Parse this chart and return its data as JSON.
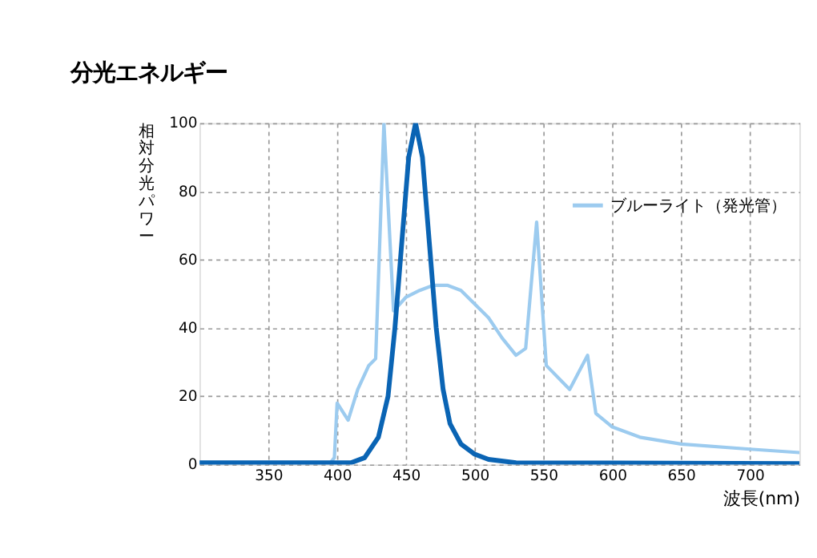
{
  "chart_data": {
    "type": "line",
    "title": "分光エネルギー",
    "xlabel": "波長(nm)",
    "ylabel": "相対分光パワー",
    "xlim": [
      300,
      736
    ],
    "xticks": [
      350,
      400,
      450,
      500,
      550,
      600,
      650,
      700
    ],
    "ylim": [
      0,
      100
    ],
    "yticks": [
      0,
      20,
      40,
      60,
      80,
      100
    ],
    "grid": true,
    "legend": "top right",
    "line_style": "solid",
    "marker": "none",
    "series": [
      {
        "color": "#0a64b4",
        "x": [
          300,
          410,
          420,
          430,
          437,
          442,
          447,
          452,
          457,
          462,
          467,
          472,
          477,
          482,
          490,
          500,
          510,
          530,
          736
        ],
        "values": [
          0.5,
          0.5,
          2,
          8,
          20,
          40,
          65,
          90,
          100,
          90,
          65,
          40,
          22,
          12,
          6,
          3,
          1.5,
          0.5,
          0.3
        ]
      },
      {
        "name": "ブルーライト（発光管）",
        "color": "#9ccbef",
        "x": [
          300,
          395,
          398,
          400,
          408,
          415,
          423,
          428,
          434,
          441,
          450,
          460,
          470,
          480,
          490,
          500,
          510,
          520,
          530,
          537,
          545,
          552,
          569,
          582,
          588,
          600,
          620,
          650,
          700,
          736
        ],
        "values": [
          0.5,
          0.5,
          2,
          18,
          13,
          22,
          29,
          31,
          100,
          45,
          49,
          51,
          52.5,
          52.5,
          51,
          47,
          43,
          37,
          32,
          34,
          71,
          29,
          22,
          32,
          15,
          11,
          8,
          6,
          4.5,
          3.5
        ]
      }
    ]
  }
}
